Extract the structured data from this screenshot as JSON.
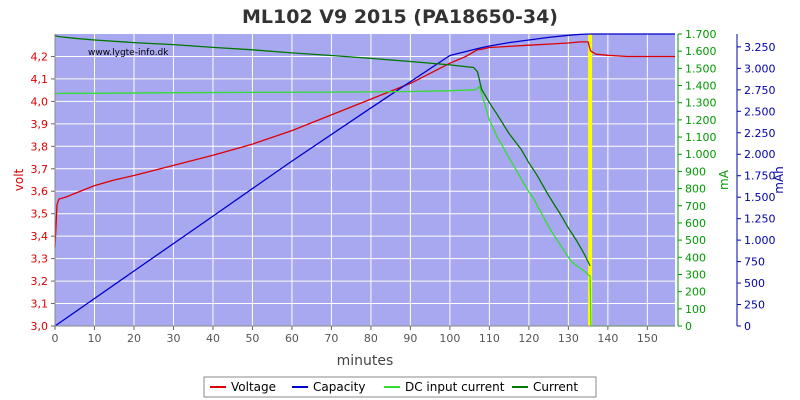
{
  "chart_data": {
    "type": "line",
    "title": "ML102 V9 2015 (PA18650-34)",
    "watermark": "www.lygte-info.dk",
    "xlabel": "minutes",
    "xlim": [
      0,
      157
    ],
    "xticks": [
      "0",
      "10",
      "20",
      "30",
      "40",
      "50",
      "60",
      "70",
      "80",
      "90",
      "100",
      "110",
      "120",
      "130",
      "140",
      "150"
    ],
    "background_color": "#a8a8f0",
    "grid": true,
    "legend_position": "bottom-center",
    "marker": {
      "x": 135.5,
      "color": "#ffff00"
    },
    "axes": {
      "left": {
        "label": "volt",
        "color": "#dd0000",
        "range": [
          3.0,
          4.3
        ],
        "ticks": [
          "3,0",
          "3,1",
          "3,2",
          "3,3",
          "3,4",
          "3,5",
          "3,6",
          "3,7",
          "3,8",
          "3,9",
          "4,0",
          "4,1",
          "4,2"
        ]
      },
      "right1": {
        "label": "mA",
        "color": "#009900",
        "range": [
          0,
          1700
        ],
        "ticks": [
          "0",
          "100",
          "200",
          "300",
          "400",
          "500",
          "600",
          "700",
          "800",
          "900",
          "1.000",
          "1.100",
          "1.200",
          "1.300",
          "1.400",
          "1.500",
          "1.600",
          "1.700"
        ]
      },
      "right2": {
        "label": "mAh",
        "color": "#0000aa",
        "range": [
          0,
          3400
        ],
        "ticks": [
          "0",
          "250",
          "500",
          "750",
          "1.000",
          "1.250",
          "1.500",
          "1.750",
          "2.000",
          "2.250",
          "2.500",
          "2.750",
          "3.000",
          "3.250"
        ]
      }
    },
    "series": [
      {
        "name": "Voltage",
        "axis": "left",
        "color": "#dd0000",
        "x": [
          0,
          0.5,
          1,
          3,
          5,
          10,
          15,
          20,
          30,
          40,
          50,
          60,
          70,
          80,
          90,
          95,
          100,
          104,
          107,
          108,
          110,
          115,
          120,
          125,
          130,
          133,
          135,
          135.6,
          137,
          140,
          145,
          150,
          157
        ],
        "y": [
          3.35,
          3.54,
          3.565,
          3.575,
          3.59,
          3.625,
          3.65,
          3.67,
          3.715,
          3.76,
          3.81,
          3.87,
          3.94,
          4.01,
          4.08,
          4.125,
          4.17,
          4.2,
          4.23,
          4.232,
          4.24,
          4.245,
          4.25,
          4.255,
          4.26,
          4.265,
          4.265,
          4.225,
          4.21,
          4.205,
          4.2,
          4.2,
          4.2
        ]
      },
      {
        "name": "Capacity",
        "axis": "right2",
        "color": "#0000cc",
        "x": [
          0,
          20,
          40,
          60,
          80,
          100,
          107,
          110,
          115,
          120,
          125,
          130,
          133,
          135.5,
          157
        ],
        "y": [
          0,
          640,
          1280,
          1920,
          2540,
          3150,
          3230,
          3260,
          3300,
          3330,
          3360,
          3385,
          3395,
          3400,
          3400
        ]
      },
      {
        "name": "DC input current",
        "axis": "right1",
        "color": "#33dd33",
        "x": [
          0,
          1,
          10,
          30,
          50,
          70,
          90,
          100,
          106.5,
          107.5,
          110,
          112,
          115,
          117,
          120,
          121,
          125,
          126,
          130,
          131,
          134,
          135.5,
          135.7,
          140,
          157
        ],
        "y": [
          1350,
          1355,
          1355,
          1358,
          1360,
          1362,
          1365,
          1370,
          1375,
          1395,
          1200,
          1100,
          980,
          900,
          780,
          750,
          580,
          540,
          400,
          370,
          320,
          290,
          0,
          0,
          0
        ]
      },
      {
        "name": "Current",
        "axis": "right1",
        "color": "#007700",
        "x": [
          0,
          1,
          5,
          10,
          20,
          30,
          40,
          50,
          60,
          70,
          80,
          90,
          100,
          106,
          107,
          108,
          110,
          112,
          115,
          118,
          120,
          122,
          125,
          128,
          130,
          132,
          134,
          135.5
        ],
        "y": [
          1690,
          1685,
          1675,
          1665,
          1650,
          1638,
          1622,
          1608,
          1590,
          1575,
          1558,
          1540,
          1520,
          1505,
          1480,
          1380,
          1300,
          1230,
          1120,
          1030,
          950,
          880,
          760,
          650,
          570,
          500,
          420,
          350
        ]
      }
    ]
  }
}
